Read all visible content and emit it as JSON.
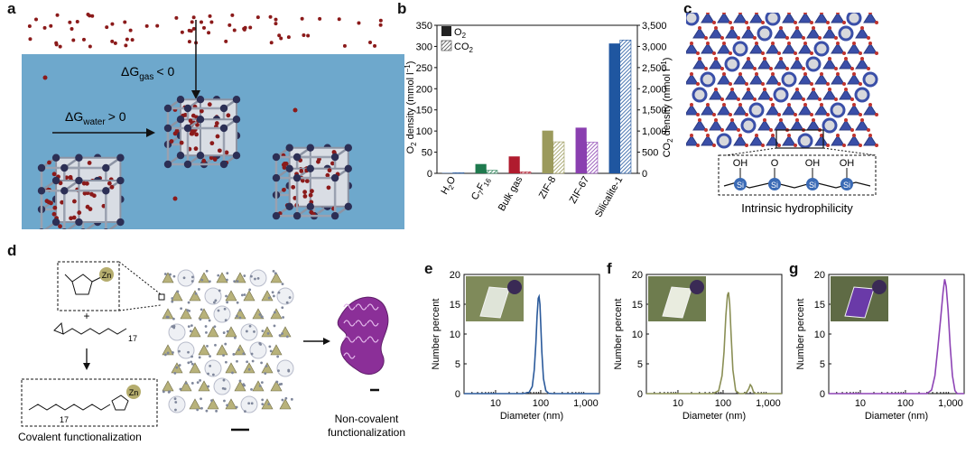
{
  "panels": {
    "a": {
      "label": "a",
      "dg_gas": "ΔG",
      "dg_gas_sub": "gas",
      "dg_gas_rel": "< 0",
      "dg_water": "ΔG",
      "dg_water_sub": "water",
      "dg_water_rel": "> 0",
      "colors": {
        "water": "#6ea8cc",
        "o2": "#8b1a1a",
        "framework": "#2c2f55"
      }
    },
    "b": {
      "label": "b"
    },
    "c": {
      "label": "c",
      "caption": "Intrinsic hydrophilicity",
      "oh": "OH",
      "o": "O",
      "si": "Si"
    },
    "d": {
      "label": "d",
      "zn": "Zn",
      "plus": "+",
      "n17": "17",
      "caption_covalent": "Covalent functionalization",
      "caption_noncovalent_1": "Non-covalent",
      "caption_noncovalent_2": "functionalization"
    },
    "e": {
      "label": "e"
    },
    "f": {
      "label": "f"
    },
    "g": {
      "label": "g"
    }
  },
  "chart_data": [
    {
      "type": "bar",
      "panel": "b",
      "categories": [
        "H2O",
        "C7F16",
        "Bulk gas",
        "ZIF-8",
        "ZIF-67",
        "Silicalite-1"
      ],
      "category_labels": [
        {
          "main": "H",
          "sub": "2",
          "tail": "O"
        },
        {
          "main": "C",
          "sub": "7",
          "mid": "F",
          "sub2": "16"
        },
        {
          "main": "Bulk gas"
        },
        {
          "main": "ZIF-8"
        },
        {
          "main": "ZIF-67"
        },
        {
          "main": "Silicalite-1"
        }
      ],
      "series": [
        {
          "name": "O2",
          "axis": "left",
          "values": [
            1,
            22,
            40,
            101,
            108,
            307
          ]
        },
        {
          "name": "CO2",
          "axis": "right",
          "values": [
            15,
            70,
            35,
            745,
            735,
            3150
          ]
        }
      ],
      "bar_colors": [
        "#2f5fa0",
        "#1f7a4e",
        "#b01b2e",
        "#9b9a5c",
        "#8a3fb0",
        "#1f56a0"
      ],
      "ylabel_left": {
        "main": "O",
        "sub": "2",
        "tail": " density (mmol l",
        "sup": "−1",
        "close": ")"
      },
      "ylabel_right": {
        "main": "CO",
        "sub": "2",
        "tail": " density (mmol l",
        "sup": "−1",
        "close": ")"
      },
      "ylim_left": [
        0,
        350
      ],
      "ylim_right": [
        0,
        3500
      ],
      "yticks_left": [
        "0",
        "50",
        "100",
        "150",
        "200",
        "250",
        "300",
        "350"
      ],
      "yticks_right": [
        "0",
        "500",
        "1,000",
        "1,500",
        "2,000",
        "2,500",
        "3,000",
        "3,500"
      ],
      "legend": [
        {
          "main": "O",
          "sub": "2"
        },
        {
          "main": "CO",
          "sub": "2"
        }
      ],
      "legend_position": "top-left"
    },
    {
      "type": "line",
      "panel": "e",
      "xscale": "log",
      "xlim": [
        2,
        2000
      ],
      "ylim": [
        0,
        20
      ],
      "xlabel": "Diameter (nm)",
      "ylabel": "Number percent",
      "xticks": [
        "10",
        "100",
        "1,000"
      ],
      "yticks": [
        "0",
        "5",
        "10",
        "15",
        "20"
      ],
      "series": [
        {
          "color": "#2b5a9b",
          "x": [
            40,
            55,
            65,
            72,
            78,
            83,
            88,
            92,
            96,
            100,
            106,
            115,
            130,
            150,
            180
          ],
          "y": [
            0,
            0.2,
            1.2,
            4,
            8.5,
            13,
            16,
            16.3,
            15,
            12,
            7,
            2.5,
            0.5,
            0.05,
            0
          ]
        }
      ]
    },
    {
      "type": "line",
      "panel": "f",
      "xscale": "log",
      "xlim": [
        2,
        2000
      ],
      "ylim": [
        0,
        20
      ],
      "xlabel": "Diameter (nm)",
      "ylabel": "Number percent",
      "xticks": [
        "10",
        "100",
        "1,000"
      ],
      "yticks": [
        "0",
        "5",
        "10",
        "15",
        "20"
      ],
      "series": [
        {
          "color": "#8a8f55",
          "x": [
            60,
            80,
            95,
            105,
            115,
            125,
            132,
            140,
            150,
            165,
            190,
            230,
            280,
            330,
            370,
            400,
            430,
            470,
            520,
            600
          ],
          "y": [
            0,
            0.5,
            3,
            7,
            13,
            16.5,
            17,
            15,
            10,
            4,
            0.5,
            0,
            0,
            0.2,
            0.8,
            1.5,
            1.2,
            0.3,
            0,
            0
          ]
        }
      ]
    },
    {
      "type": "line",
      "panel": "g",
      "xscale": "log",
      "xlim": [
        2,
        2000
      ],
      "ylim": [
        0,
        20
      ],
      "xlabel": "Diameter (nm)",
      "ylabel": "Number percent",
      "xticks": [
        "10",
        "100",
        "1,000"
      ],
      "yticks": [
        "0",
        "5",
        "10",
        "15",
        "20"
      ],
      "series": [
        {
          "color": "#8d43b5",
          "x": [
            300,
            380,
            450,
            520,
            600,
            680,
            740,
            800,
            880,
            980,
            1100,
            1250,
            1400
          ],
          "y": [
            0,
            0.6,
            3,
            7.5,
            12.5,
            17,
            19.2,
            18,
            14,
            8,
            3,
            0.5,
            0
          ]
        }
      ]
    }
  ]
}
